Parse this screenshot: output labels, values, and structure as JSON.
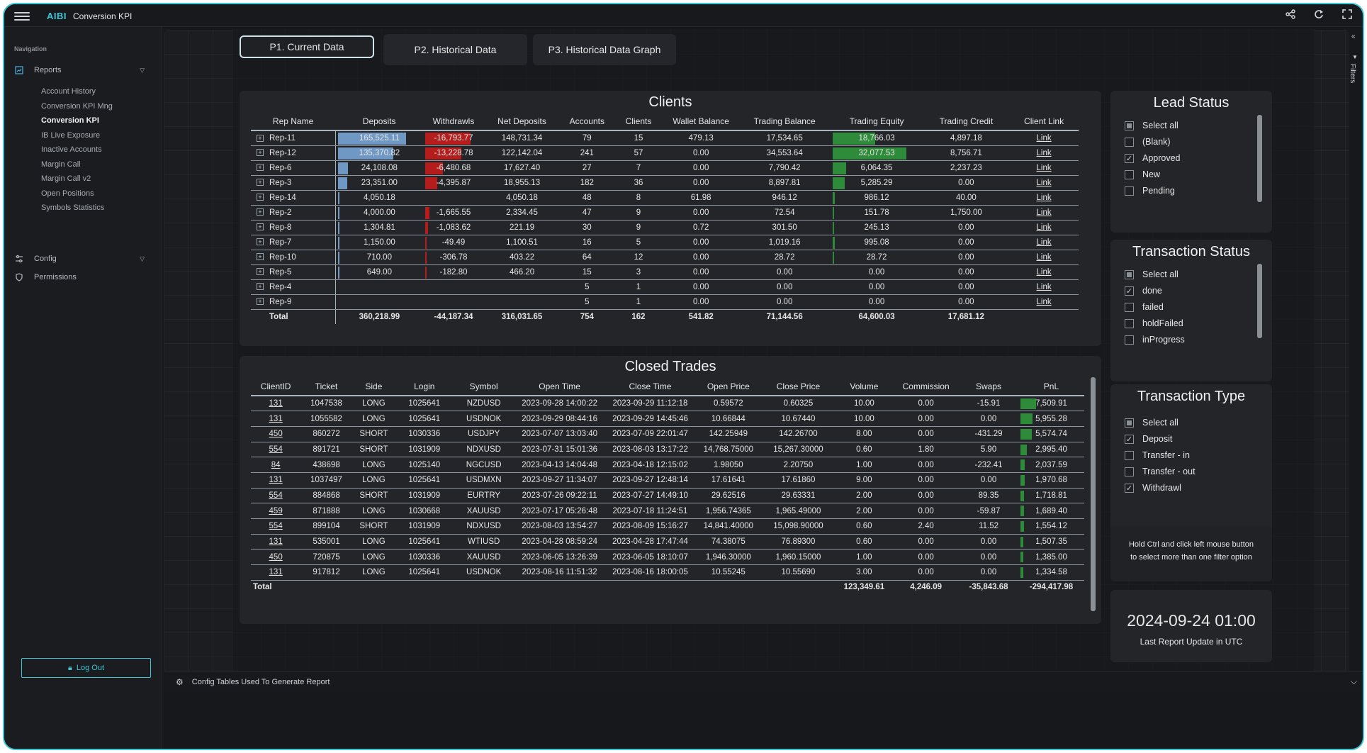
{
  "app": {
    "brand": "AIBI",
    "title": "Conversion KPI"
  },
  "topbar_icons": [
    "share-icon",
    "refresh-icon",
    "fullscreen-icon"
  ],
  "sidebar": {
    "heading": "Navigation",
    "reports_label": "Reports",
    "report_items": [
      "Account History",
      "Conversion KPI Mng",
      "Conversion KPI",
      "IB Live Exposure",
      "Inactive Accounts",
      "Margin Call",
      "Margin Call v2",
      "Open Positions",
      "Symbols Statistics"
    ],
    "active_item": "Conversion KPI",
    "config_label": "Config",
    "permissions_label": "Permissions",
    "logout_label": "Log Out"
  },
  "tabs": [
    "P1. Current Data",
    "P2. Historical Data",
    "P3. Historical Data Graph"
  ],
  "active_tab": "P1. Current Data",
  "filters_label": "Filters",
  "clients": {
    "title": "Clients",
    "columns": [
      "Rep Name",
      "Deposits",
      "Withdrawls",
      "Net Deposits",
      "Accounts",
      "Clients",
      "Wallet Balance",
      "Trading Balance",
      "Trading Equity",
      "Trading Credit",
      "Client Link"
    ],
    "rows": [
      {
        "rep": "Rep-11",
        "deposits": "165,525.11",
        "dep_frac": 1.0,
        "withdrawls": "-16,793.77",
        "wd_frac": 1.0,
        "net": "148,731.34",
        "accounts": "79",
        "clients": "15",
        "wallet": "479.13",
        "tbal": "17,534.65",
        "equity": "18,766.03",
        "eq_frac": 0.585,
        "credit": "4,897.18",
        "link": "Link"
      },
      {
        "rep": "Rep-12",
        "deposits": "135,370.82",
        "dep_frac": 0.818,
        "withdrawls": "-13,228.78",
        "wd_frac": 0.788,
        "net": "122,142.04",
        "accounts": "241",
        "clients": "57",
        "wallet": "0.00",
        "tbal": "34,553.64",
        "equity": "32,077.53",
        "eq_frac": 1.0,
        "credit": "8,756.71",
        "link": "Link"
      },
      {
        "rep": "Rep-6",
        "deposits": "24,108.08",
        "dep_frac": 0.146,
        "withdrawls": "-6,480.68",
        "wd_frac": 0.386,
        "net": "17,627.40",
        "accounts": "27",
        "clients": "7",
        "wallet": "0.00",
        "tbal": "7,790.42",
        "equity": "6,064.35",
        "eq_frac": 0.189,
        "credit": "2,237.23",
        "link": "Link"
      },
      {
        "rep": "Rep-3",
        "deposits": "23,351.00",
        "dep_frac": 0.141,
        "withdrawls": "-4,395.87",
        "wd_frac": 0.262,
        "net": "18,955.13",
        "accounts": "182",
        "clients": "36",
        "wallet": "0.00",
        "tbal": "8,897.81",
        "equity": "5,285.29",
        "eq_frac": 0.165,
        "credit": "0.00",
        "link": "Link"
      },
      {
        "rep": "Rep-14",
        "deposits": "4,050.18",
        "dep_frac": 0.024,
        "withdrawls": "",
        "wd_frac": 0,
        "net": "4,050.18",
        "accounts": "48",
        "clients": "8",
        "wallet": "61.98",
        "tbal": "946.12",
        "equity": "986.12",
        "eq_frac": 0.031,
        "credit": "40.00",
        "link": "Link"
      },
      {
        "rep": "Rep-2",
        "deposits": "4,000.00",
        "dep_frac": 0.024,
        "withdrawls": "-1,665.55",
        "wd_frac": 0.099,
        "net": "2,334.45",
        "accounts": "47",
        "clients": "9",
        "wallet": "0.00",
        "tbal": "72.54",
        "equity": "151.78",
        "eq_frac": 0.005,
        "credit": "1,750.00",
        "link": "Link"
      },
      {
        "rep": "Rep-8",
        "deposits": "1,304.81",
        "dep_frac": 0.008,
        "withdrawls": "-1,083.62",
        "wd_frac": 0.065,
        "net": "221.19",
        "accounts": "30",
        "clients": "9",
        "wallet": "0.72",
        "tbal": "301.50",
        "equity": "245.13",
        "eq_frac": 0.008,
        "credit": "0.00",
        "link": "Link"
      },
      {
        "rep": "Rep-7",
        "deposits": "1,150.00",
        "dep_frac": 0.007,
        "withdrawls": "-49.49",
        "wd_frac": 0.003,
        "net": "1,100.51",
        "accounts": "16",
        "clients": "5",
        "wallet": "0.00",
        "tbal": "1,019.16",
        "equity": "995.08",
        "eq_frac": 0.031,
        "credit": "0.00",
        "link": "Link"
      },
      {
        "rep": "Rep-10",
        "deposits": "710.00",
        "dep_frac": 0.004,
        "withdrawls": "-306.78",
        "wd_frac": 0.018,
        "net": "403.22",
        "accounts": "64",
        "clients": "12",
        "wallet": "0.00",
        "tbal": "28.72",
        "equity": "28.72",
        "eq_frac": 0.001,
        "credit": "0.00",
        "link": "Link"
      },
      {
        "rep": "Rep-5",
        "deposits": "649.00",
        "dep_frac": 0.004,
        "withdrawls": "-182.80",
        "wd_frac": 0.011,
        "net": "466.20",
        "accounts": "15",
        "clients": "3",
        "wallet": "0.00",
        "tbal": "0.00",
        "equity": "0.00",
        "eq_frac": 0,
        "credit": "0.00",
        "link": "Link"
      },
      {
        "rep": "Rep-4",
        "deposits": "",
        "dep_frac": 0,
        "withdrawls": "",
        "wd_frac": 0,
        "net": "",
        "accounts": "5",
        "clients": "1",
        "wallet": "0.00",
        "tbal": "0.00",
        "equity": "0.00",
        "eq_frac": 0,
        "credit": "0.00",
        "link": "Link"
      },
      {
        "rep": "Rep-9",
        "deposits": "",
        "dep_frac": 0,
        "withdrawls": "",
        "wd_frac": 0,
        "net": "",
        "accounts": "5",
        "clients": "1",
        "wallet": "0.00",
        "tbal": "0.00",
        "equity": "0.00",
        "eq_frac": 0,
        "credit": "0.00",
        "link": "Link"
      }
    ],
    "total": {
      "label": "Total",
      "deposits": "360,218.99",
      "withdrawls": "-44,187.34",
      "net": "316,031.65",
      "accounts": "754",
      "clients": "162",
      "wallet": "541.82",
      "tbal": "71,144.56",
      "equity": "64,600.03",
      "credit": "17,681.12"
    }
  },
  "trades": {
    "title": "Closed Trades",
    "columns": [
      "ClientID",
      "Ticket",
      "Side",
      "Login",
      "Symbol",
      "Open Time",
      "Close Time",
      "Open Price",
      "Close Price",
      "Volume",
      "Commission",
      "Swaps",
      "PnL"
    ],
    "rows": [
      [
        "131",
        "1047538",
        "LONG",
        "1025641",
        "NZDUSD",
        "2023-09-28 14:00:22",
        "2023-09-29 11:12:18",
        "0.59572",
        "0.60325",
        "10.00",
        "0.00",
        "-15.91",
        "7,509.91"
      ],
      [
        "131",
        "1055582",
        "LONG",
        "1025641",
        "USDNOK",
        "2023-09-29 08:44:16",
        "2023-09-29 14:45:46",
        "10.66844",
        "10.67440",
        "10.00",
        "0.00",
        "0.00",
        "5,955.28"
      ],
      [
        "450",
        "860272",
        "SHORT",
        "1030336",
        "USDJPY",
        "2023-07-07 13:03:40",
        "2023-07-09 22:01:47",
        "142.25949",
        "142.26700",
        "8.00",
        "0.00",
        "-431.29",
        "5,574.74"
      ],
      [
        "554",
        "891721",
        "SHORT",
        "1031909",
        "NDXUSD",
        "2023-07-31 15:01:36",
        "2023-08-03 13:17:22",
        "14,768.75000",
        "15,267.30000",
        "0.60",
        "1.80",
        "5.90",
        "2,995.40"
      ],
      [
        "84",
        "438698",
        "LONG",
        "1025140",
        "NGCUSD",
        "2023-04-13 14:04:48",
        "2023-04-18 12:15:02",
        "1.98050",
        "2.20750",
        "1.00",
        "0.00",
        "-232.41",
        "2,037.59"
      ],
      [
        "131",
        "1037497",
        "LONG",
        "1025641",
        "USDMXN",
        "2023-09-27 11:34:07",
        "2023-09-27 12:48:14",
        "17.61641",
        "17.61860",
        "9.00",
        "0.00",
        "0.00",
        "1,970.68"
      ],
      [
        "554",
        "884868",
        "SHORT",
        "1031909",
        "EURTRY",
        "2023-07-26 09:22:11",
        "2023-07-27 14:49:10",
        "29.62516",
        "29.63331",
        "2.00",
        "0.00",
        "89.35",
        "1,718.81"
      ],
      [
        "459",
        "871888",
        "LONG",
        "1030668",
        "XAUUSD",
        "2023-07-17 05:26:48",
        "2023-07-18 11:24:51",
        "1,956.74365",
        "1,965.49000",
        "2.00",
        "0.00",
        "-59.87",
        "1,689.40"
      ],
      [
        "554",
        "899104",
        "SHORT",
        "1031909",
        "NDXUSD",
        "2023-08-03 13:54:27",
        "2023-08-09 15:16:27",
        "14,841.40000",
        "15,098.90000",
        "0.60",
        "2.40",
        "11.52",
        "1,554.12"
      ],
      [
        "131",
        "535001",
        "LONG",
        "1025641",
        "WTIUSD",
        "2023-04-28 08:59:24",
        "2023-04-28 17:47:44",
        "74.38075",
        "76.89300",
        "0.60",
        "0.00",
        "0.00",
        "1,507.35"
      ],
      [
        "450",
        "720875",
        "LONG",
        "1030336",
        "XAUUSD",
        "2023-06-05 13:26:39",
        "2023-06-05 18:10:07",
        "1,946.30000",
        "1,960.15000",
        "1.00",
        "0.00",
        "0.00",
        "1,385.00"
      ],
      [
        "131",
        "917812",
        "LONG",
        "1025641",
        "USDNOK",
        "2023-08-16 11:51:32",
        "2023-08-16 18:00:05",
        "10.55245",
        "10.55690",
        "3.00",
        "0.00",
        "0.00",
        "1,334.58"
      ]
    ],
    "pnl_fracs": [
      1.0,
      0.793,
      0.742,
      0.399,
      0.271,
      0.262,
      0.229,
      0.225,
      0.207,
      0.201,
      0.184,
      0.178
    ],
    "total": {
      "label": "Total",
      "volume": "123,349.61",
      "commission": "4,246.09",
      "swaps": "-35,843.68",
      "pnl": "-294,417.98"
    }
  },
  "lead_status": {
    "title": "Lead Status",
    "options": [
      {
        "label": "Select all",
        "state": "partial"
      },
      {
        "label": "(Blank)",
        "state": "off"
      },
      {
        "label": "Approved",
        "state": "on"
      },
      {
        "label": "New",
        "state": "off"
      },
      {
        "label": "Pending",
        "state": "off"
      }
    ]
  },
  "transaction_status": {
    "title": "Transaction Status",
    "options": [
      {
        "label": "Select all",
        "state": "partial"
      },
      {
        "label": "done",
        "state": "on"
      },
      {
        "label": "failed",
        "state": "off"
      },
      {
        "label": "holdFailed",
        "state": "off"
      },
      {
        "label": "inProgress",
        "state": "off"
      }
    ]
  },
  "transaction_type": {
    "title": "Transaction Type",
    "options": [
      {
        "label": "Select all",
        "state": "partial"
      },
      {
        "label": "Deposit",
        "state": "on"
      },
      {
        "label": "Transfer - in",
        "state": "off"
      },
      {
        "label": "Transfer - out",
        "state": "off"
      },
      {
        "label": "Withdrawl",
        "state": "on"
      }
    ]
  },
  "hint": {
    "line1": "Hold Ctrl and click left mouse button",
    "line2": "to select more than one filter option"
  },
  "report_update": {
    "datetime": "2024-09-24 01:00",
    "label": "Last Report Update in UTC"
  },
  "bottom": {
    "label": "Config Tables Used To Generate Report"
  },
  "colors": {
    "accent": "#3ec6d6",
    "deposit_bar": "#6f98c4",
    "withdraw_bar": "#b51c1c",
    "equity_bar": "#2e8b3a",
    "pnl_bar": "#2e8b3a"
  }
}
